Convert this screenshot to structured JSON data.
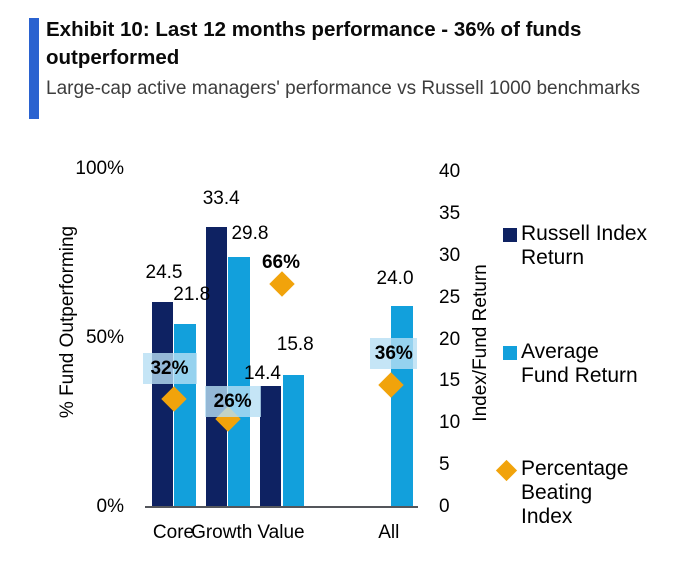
{
  "header": {
    "title": "Exhibit 10: Last 12 months performance - 36% of funds outperformed",
    "subtitle": "Large-cap active managers' performance vs Russell 1000 benchmarks",
    "accent_color": "#2A62D0"
  },
  "chart_data": {
    "type": "bar",
    "categories": [
      "Core",
      "Growth",
      "Value",
      "All"
    ],
    "series": [
      {
        "name": "Russell Index Return",
        "type": "bar",
        "axis": "right",
        "color": "#0E2262",
        "values": [
          24.5,
          33.4,
          14.4,
          null
        ],
        "data_labels": [
          "24.5",
          "33.4",
          "14.4",
          null
        ]
      },
      {
        "name": "Average Fund Return",
        "type": "bar",
        "axis": "right",
        "color": "#12A0DC",
        "values": [
          21.8,
          29.8,
          15.8,
          24.0
        ],
        "data_labels": [
          "21.8",
          "29.8",
          "15.8",
          "24.0"
        ]
      },
      {
        "name": "Percentage Beating Index",
        "type": "scatter-diamond",
        "axis": "left",
        "color": "#F1A30B",
        "values": [
          32,
          26,
          66,
          36
        ],
        "data_labels": [
          "32%",
          "26%",
          "66%",
          "36%"
        ],
        "label_highlighted": [
          true,
          true,
          false,
          true
        ]
      }
    ],
    "left_axis": {
      "title": "% Fund Outperforming",
      "tick_labels": [
        "0%",
        "50%",
        "100%"
      ],
      "tick_values": [
        0,
        50,
        100
      ],
      "range": [
        0,
        100
      ]
    },
    "right_axis": {
      "title": "Index/Fund Return",
      "tick_labels": [
        "0",
        "5",
        "10",
        "15",
        "20",
        "25",
        "30",
        "35",
        "40"
      ],
      "tick_values": [
        0,
        5,
        10,
        15,
        20,
        25,
        30,
        35,
        40
      ],
      "range": [
        0,
        40
      ]
    },
    "legend": {
      "position": "right",
      "items": [
        {
          "lines": [
            "Russell Index",
            "Return"
          ],
          "marker": "square",
          "color": "#0E2262"
        },
        {
          "lines": [
            "Average",
            "Fund Return"
          ],
          "marker": "square",
          "color": "#12A0DC"
        },
        {
          "lines": [
            "Percentage",
            "Beating",
            "Index"
          ],
          "marker": "diamond",
          "color": "#F1A30B"
        }
      ]
    },
    "grid": "off",
    "label_highlight_color": "rgba(182,222,244,0.8)"
  }
}
